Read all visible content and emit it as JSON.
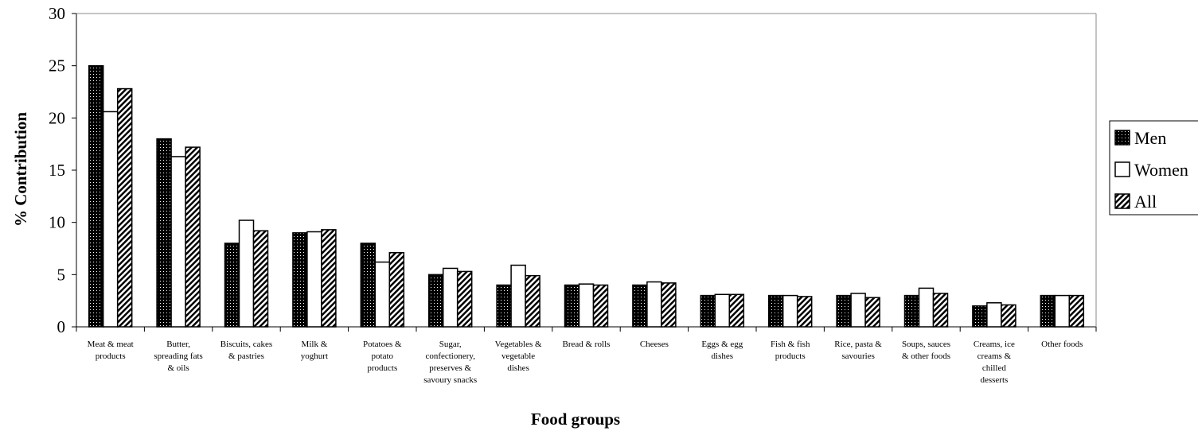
{
  "chart_data": {
    "type": "bar",
    "xlabel": "Food groups",
    "ylabel": "% Contribution",
    "ylim": [
      0,
      30
    ],
    "yticks": [
      "0",
      "5",
      "10",
      "15",
      "20",
      "25",
      "30"
    ],
    "categories": [
      [
        "Meat & meat",
        "products"
      ],
      [
        "Butter,",
        "spreading fats",
        "& oils"
      ],
      [
        "Biscuits, cakes",
        "& pastries"
      ],
      [
        "Milk &",
        "yoghurt"
      ],
      [
        "Potatoes &",
        "potato",
        "products"
      ],
      [
        "Sugar,",
        "confectionery,",
        "preserves  &",
        "savoury snacks"
      ],
      [
        "Vegetables &",
        "vegetable",
        "dishes"
      ],
      [
        "Bread & rolls"
      ],
      [
        "Cheeses"
      ],
      [
        "Eggs & egg",
        "dishes"
      ],
      [
        "Fish & fish",
        "products"
      ],
      [
        "Rice, pasta &",
        "savouries"
      ],
      [
        "Soups, sauces",
        "& other foods"
      ],
      [
        "Creams, ice",
        "creams &",
        "chilled",
        "desserts"
      ],
      [
        "Other foods"
      ]
    ],
    "series": [
      {
        "name": "Men",
        "values": [
          25,
          18,
          8,
          9,
          8,
          5,
          4,
          4,
          4,
          3,
          3,
          3,
          3,
          2,
          3
        ]
      },
      {
        "name": "Women",
        "values": [
          20.6,
          16.3,
          10.2,
          9.1,
          6.2,
          5.6,
          5.9,
          4.1,
          4.3,
          3.1,
          3.0,
          3.2,
          3.7,
          2.3,
          3.0
        ]
      },
      {
        "name": "All",
        "values": [
          22.8,
          17.2,
          9.2,
          9.3,
          7.1,
          5.3,
          4.9,
          4.0,
          4.2,
          3.1,
          2.9,
          2.8,
          3.2,
          2.1,
          3.0
        ]
      }
    ],
    "legend_position": "right",
    "grid": false,
    "colors": {
      "men": "#000000",
      "women": "#ffffff",
      "all": "#000000"
    }
  }
}
